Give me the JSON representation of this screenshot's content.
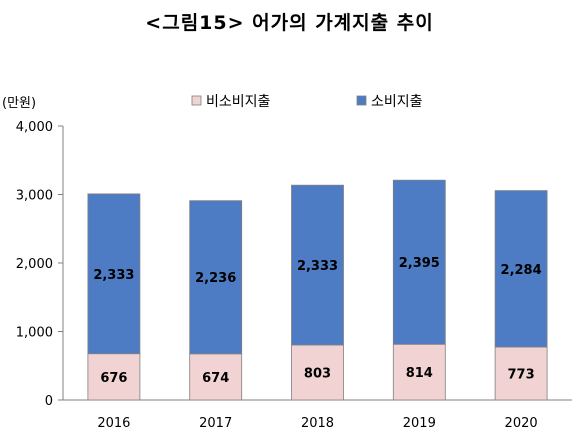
{
  "chart_data": {
    "type": "bar",
    "stacked": true,
    "title": "<그림15> 어가의 가계지출 추이",
    "ylabel": "(만원)",
    "categories": [
      "2016",
      "2017",
      "2018",
      "2019",
      "2020"
    ],
    "series": [
      {
        "name": "비소비지출",
        "values": [
          676,
          674,
          803,
          814,
          773
        ],
        "color": "#f2d3d3"
      },
      {
        "name": "소비지출",
        "values": [
          2333,
          2236,
          2333,
          2395,
          2284
        ],
        "color": "#4e7cc4"
      }
    ],
    "data_labels": [
      [
        "676",
        "674",
        "803",
        "814",
        "773"
      ],
      [
        "2,333",
        "2,236",
        "2,333",
        "2,395",
        "2,284"
      ]
    ],
    "ylim": [
      0,
      4000
    ],
    "yticks": [
      0,
      1000,
      2000,
      3000,
      4000
    ],
    "ytick_labels": [
      "0",
      "1,000",
      "2,000",
      "3,000",
      "4,000"
    ],
    "grid": false,
    "legend_position": "top"
  }
}
